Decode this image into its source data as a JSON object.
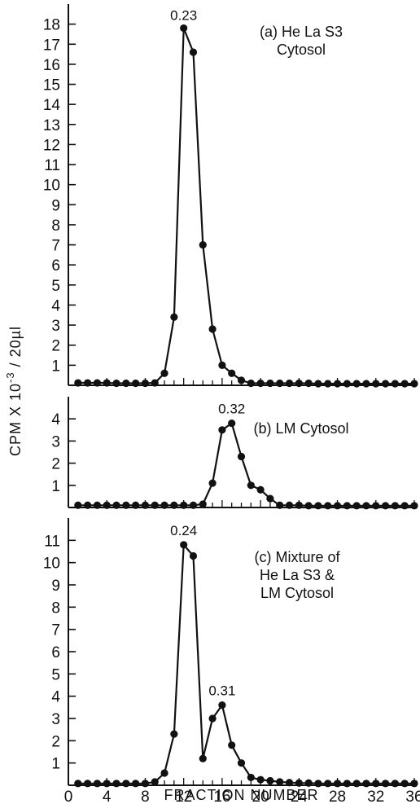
{
  "chart_data": {
    "type": "line",
    "ylabel": "CPM X 10",
    "ylabel_superscript": "-3",
    "ylabel_suffix": " / 20µl",
    "xlabel": "FRACTION NUMBER",
    "xlim": [
      0,
      36
    ],
    "x_ticks": [
      "0",
      "4",
      "8",
      "12",
      "16",
      "20",
      "24",
      "28",
      "32",
      "36"
    ],
    "marker": "filled-circle",
    "line_color": "#111111",
    "panels": [
      {
        "label": "(a) He La S3\nCytosol",
        "ylim": [
          0,
          19
        ],
        "y_ticks": [
          "1",
          "2",
          "3",
          "4",
          "5",
          "6",
          "7",
          "8",
          "9",
          "10",
          "11",
          "12",
          "13",
          "14",
          "15",
          "16",
          "17",
          "18"
        ],
        "x": [
          1,
          2,
          3,
          4,
          5,
          6,
          7,
          8,
          9,
          10,
          11,
          12,
          13,
          14,
          15,
          16,
          17,
          18,
          19,
          20,
          21,
          22,
          23,
          24,
          25,
          26,
          27,
          28,
          29,
          30,
          31,
          32,
          33,
          34,
          35,
          36
        ],
        "y": [
          0.12,
          0.12,
          0.12,
          0.12,
          0.1,
          0.1,
          0.1,
          0.1,
          0.12,
          0.6,
          3.4,
          17.8,
          16.6,
          7.0,
          2.8,
          1.0,
          0.6,
          0.25,
          0.1,
          0.1,
          0.1,
          0.1,
          0.1,
          0.1,
          0.1,
          0.08,
          0.08,
          0.08,
          0.08,
          0.08,
          0.08,
          0.08,
          0.08,
          0.08,
          0.08,
          0.08
        ],
        "annotations": [
          {
            "text": "0.23",
            "x": 12
          }
        ]
      },
      {
        "label": "(b) LM Cytosol",
        "ylim": [
          0,
          5
        ],
        "y_ticks": [
          "1",
          "2",
          "3",
          "4"
        ],
        "x": [
          1,
          2,
          3,
          4,
          5,
          6,
          7,
          8,
          9,
          10,
          11,
          12,
          13,
          14,
          15,
          16,
          17,
          18,
          19,
          20,
          21,
          22,
          23,
          24,
          25,
          26,
          27,
          28,
          29,
          30,
          31,
          32,
          33,
          34,
          35,
          36
        ],
        "y": [
          0.1,
          0.1,
          0.1,
          0.1,
          0.1,
          0.1,
          0.1,
          0.1,
          0.1,
          0.1,
          0.1,
          0.1,
          0.1,
          0.15,
          1.1,
          3.5,
          3.8,
          2.3,
          1.0,
          0.8,
          0.4,
          0.1,
          0.1,
          0.1,
          0.08,
          0.08,
          0.08,
          0.08,
          0.08,
          0.08,
          0.08,
          0.08,
          0.08,
          0.08,
          0.08,
          0.08
        ],
        "annotations": [
          {
            "text": "0.32",
            "x": 17
          }
        ]
      },
      {
        "label": "(c) Mixture of\nHe La S3 &\nLM Cytosol",
        "ylim": [
          0,
          12
        ],
        "y_ticks": [
          "1",
          "2",
          "3",
          "4",
          "5",
          "6",
          "7",
          "8",
          "9",
          "10",
          "11"
        ],
        "x": [
          1,
          2,
          3,
          4,
          5,
          6,
          7,
          8,
          9,
          10,
          11,
          12,
          13,
          14,
          15,
          16,
          17,
          18,
          19,
          20,
          21,
          22,
          23,
          24,
          25,
          26,
          27,
          28,
          29,
          30,
          31,
          32,
          33,
          34,
          35,
          36
        ],
        "y": [
          0.08,
          0.08,
          0.08,
          0.08,
          0.08,
          0.08,
          0.08,
          0.08,
          0.15,
          0.55,
          2.3,
          10.8,
          10.3,
          1.2,
          3.0,
          3.6,
          1.8,
          1.0,
          0.35,
          0.25,
          0.2,
          0.15,
          0.12,
          0.1,
          0.1,
          0.08,
          0.08,
          0.08,
          0.08,
          0.08,
          0.08,
          0.08,
          0.08,
          0.08,
          0.08,
          0.08
        ],
        "annotations": [
          {
            "text": "0.24",
            "x": 12
          },
          {
            "text": "0.31",
            "x": 16
          }
        ]
      }
    ]
  }
}
